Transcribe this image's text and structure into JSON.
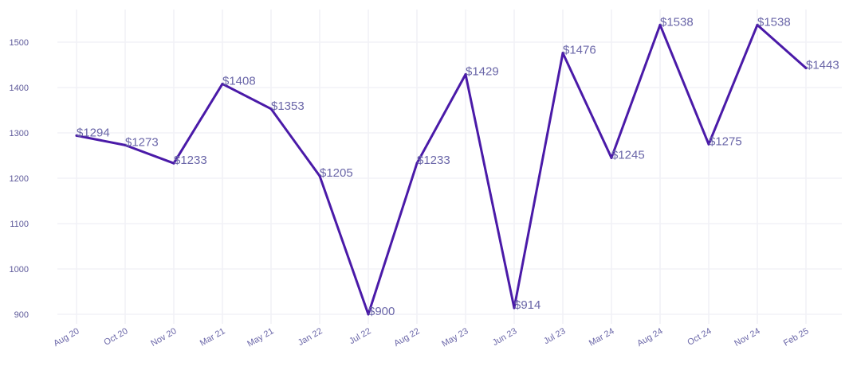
{
  "chart_data": {
    "type": "line",
    "title": "",
    "xlabel": "",
    "ylabel": "",
    "ylim": [
      880,
      1560
    ],
    "yticks": [
      900,
      1000,
      1100,
      1200,
      1300,
      1400,
      1500
    ],
    "categories": [
      "Aug 20",
      "Oct 20",
      "Nov 20",
      "Mar 21",
      "May 21",
      "Jan 22",
      "Jul 22",
      "Aug 22",
      "May 23",
      "Jun 23",
      "Jul 23",
      "Mar 24",
      "Aug 24",
      "Oct 24",
      "Nov 24",
      "Feb 25"
    ],
    "series": [
      {
        "name": "Price",
        "color": "#4a1aa8",
        "values": [
          1294,
          1273,
          1233,
          1408,
          1353,
          1205,
          900,
          1233,
          1429,
          914,
          1476,
          1245,
          1538,
          1275,
          1538,
          1443
        ],
        "labels": [
          "$1294",
          "$1273",
          "$1233",
          "$1408",
          "$1353",
          "$1205",
          "$900",
          "$1233",
          "$1429",
          "$914",
          "$1476",
          "$1245",
          "$1538",
          "$1275",
          "$1538",
          "$1443"
        ]
      }
    ],
    "grid": true,
    "legend": "none"
  }
}
